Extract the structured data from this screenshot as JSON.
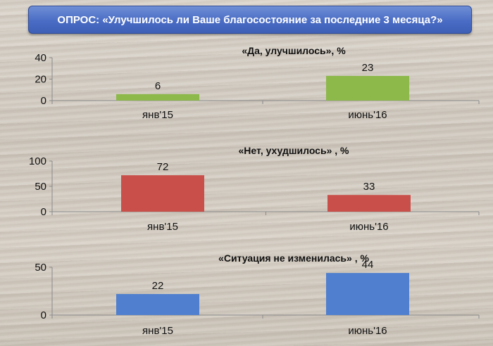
{
  "header": {
    "title": "ОПРОС: «Улучшилось ли Ваше благосостояние за последние 3 месяца?»"
  },
  "chart_data": [
    {
      "type": "bar",
      "title": "«Да, улучшилось», %",
      "categories": [
        "янв'15",
        "июнь'16"
      ],
      "values": [
        6,
        23
      ],
      "yticks": [
        0,
        20,
        40
      ],
      "ylim": [
        0,
        40
      ],
      "color": "#8db84a",
      "grid": false
    },
    {
      "type": "bar",
      "title": "«Нет, ухудшилось» , %",
      "categories": [
        "янв'15",
        "июнь'16"
      ],
      "values": [
        72,
        33
      ],
      "yticks": [
        0,
        50,
        100
      ],
      "ylim": [
        0,
        100
      ],
      "color": "#c9504a",
      "grid": false
    },
    {
      "type": "bar",
      "title": "«Ситуация не изменилась» , %",
      "categories": [
        "янв'15",
        "июнь'16"
      ],
      "values": [
        22,
        44
      ],
      "yticks": [
        0,
        50
      ],
      "ylim": [
        0,
        50
      ],
      "color": "#4f7fce",
      "grid": false
    }
  ]
}
